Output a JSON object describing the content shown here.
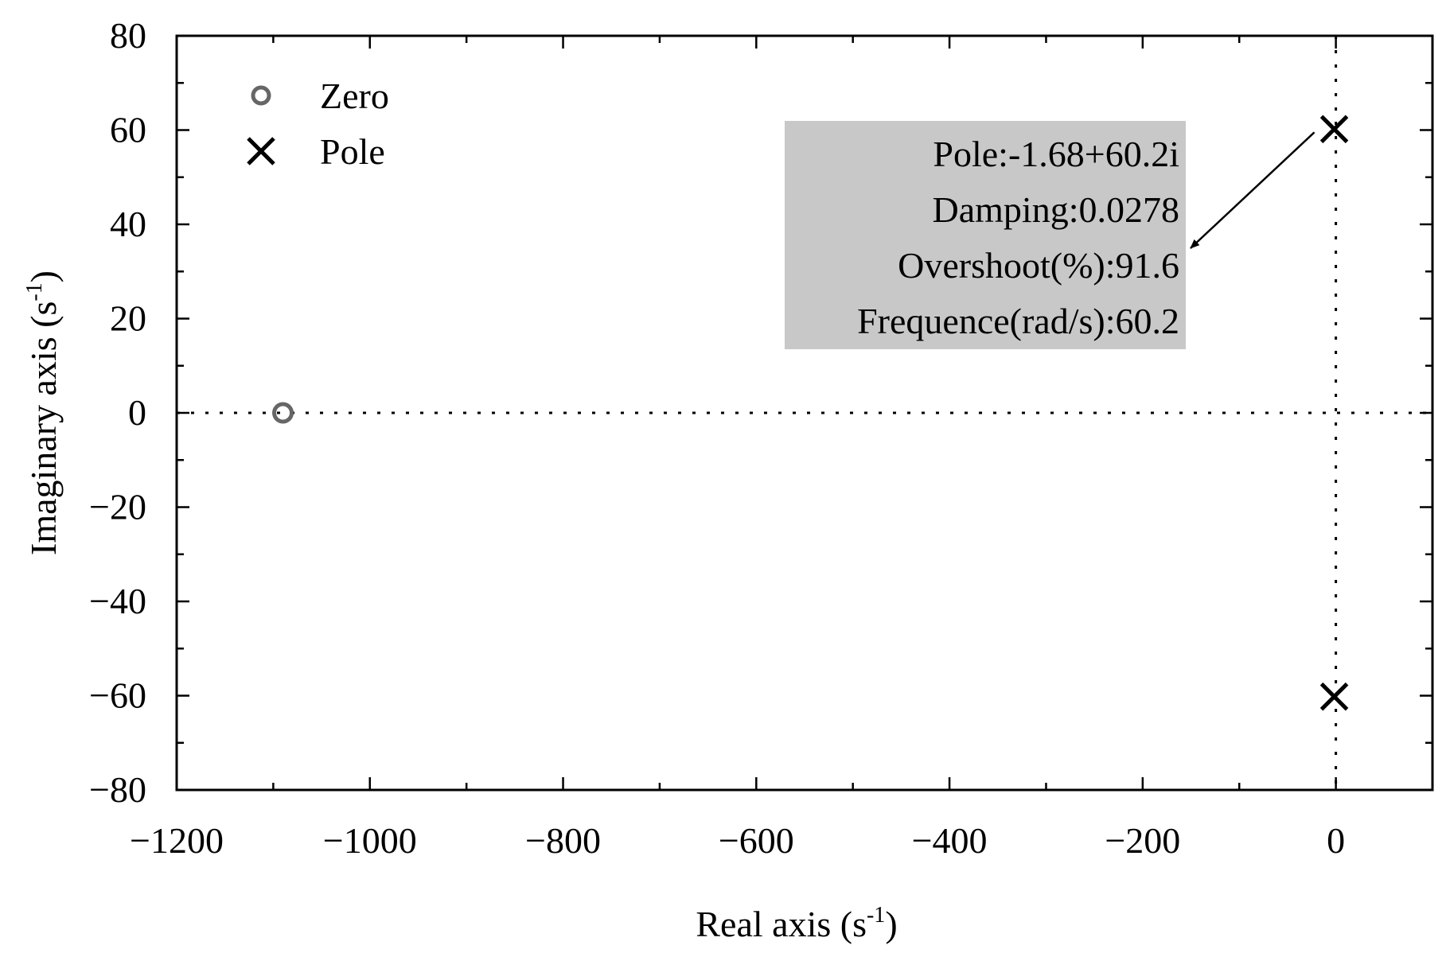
{
  "chart_data": {
    "type": "scatter",
    "title": "",
    "xlabel": {
      "main": "Real axis (s",
      "sup": "-1",
      "end": ")"
    },
    "ylabel": {
      "main": "Imaginary axis (s",
      "sup": "-1",
      "end": ")"
    },
    "xlim": [
      -1200,
      100
    ],
    "ylim": [
      -80,
      80
    ],
    "xticks": [
      -1200,
      -1000,
      -800,
      -600,
      -400,
      -200,
      0
    ],
    "xtick_labels": [
      "−1200",
      "−1000",
      "−800",
      "−600",
      "−400",
      "−200",
      "0"
    ],
    "yticks": [
      80,
      60,
      40,
      20,
      0,
      -20,
      -40,
      -60,
      -80
    ],
    "ytick_labels": [
      "80",
      "60",
      "40",
      "20",
      "0",
      "−20",
      "−40",
      "−60",
      "−80"
    ],
    "grid": false,
    "reference_lines": {
      "x": 0,
      "y": 0,
      "style": "dotted"
    },
    "legend": {
      "placement": "top-left",
      "entries": [
        {
          "label": "Zero",
          "marker": "circle",
          "color": "#666666"
        },
        {
          "label": "Pole",
          "marker": "x",
          "color": "#000000"
        }
      ]
    },
    "series": [
      {
        "name": "Zero",
        "marker": "circle",
        "color": "#666666",
        "points": [
          {
            "x": -1090,
            "y": 0
          }
        ]
      },
      {
        "name": "Pole",
        "marker": "x",
        "color": "#000000",
        "points": [
          {
            "x": -1.68,
            "y": 60.2
          },
          {
            "x": -1.68,
            "y": -60.2
          }
        ]
      }
    ],
    "annotation": {
      "target": {
        "x": -1.68,
        "y": 60.2
      },
      "background": "#c8c8c8",
      "lines": [
        "Pole:-1.68+60.2i",
        "Damping:0.0278",
        "Overshoot(%):91.6",
        "Frequence(rad/s):60.2"
      ]
    }
  }
}
